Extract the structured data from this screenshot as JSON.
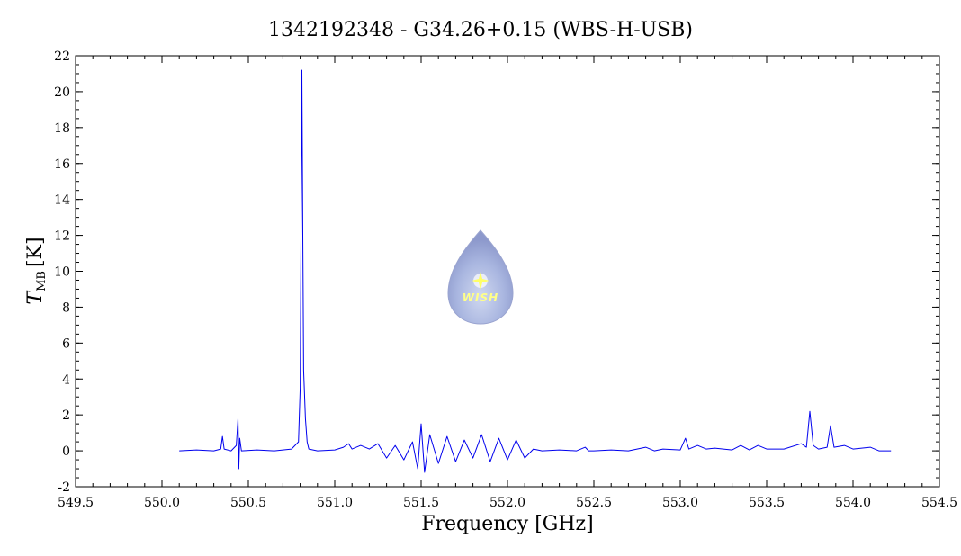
{
  "chart_data": {
    "type": "line",
    "title": "1342192348 - G34.26+0.15 (WBS-H-USB)",
    "xlabel": "Frequency [GHz]",
    "ylabel": {
      "symbol": "T",
      "subscript": "MB",
      "unit": "[K]"
    },
    "xlim": [
      549.5,
      554.5
    ],
    "ylim": [
      -2,
      22
    ],
    "xticks": [
      "549.5",
      "550.0",
      "550.5",
      "551.0",
      "551.5",
      "552.0",
      "552.5",
      "553.0",
      "553.5",
      "554.0",
      "554.5"
    ],
    "yticks": [
      "-2",
      "0",
      "2",
      "4",
      "6",
      "8",
      "10",
      "12",
      "14",
      "16",
      "18",
      "20",
      "22"
    ],
    "grid": false,
    "series": [
      {
        "color": "#0000ee",
        "x": [
          550.1,
          550.2,
          550.3,
          550.34,
          550.35,
          550.36,
          550.4,
          550.43,
          550.44,
          550.445,
          550.45,
          550.46,
          550.55,
          550.65,
          550.75,
          550.79,
          550.8,
          550.81,
          550.815,
          550.82,
          550.83,
          550.84,
          550.85,
          550.9,
          551.0,
          551.05,
          551.08,
          551.1,
          551.15,
          551.2,
          551.25,
          551.3,
          551.35,
          551.4,
          551.45,
          551.48,
          551.5,
          551.52,
          551.55,
          551.6,
          551.65,
          551.7,
          551.75,
          551.8,
          551.85,
          551.9,
          551.95,
          552.0,
          552.05,
          552.1,
          552.15,
          552.2,
          552.3,
          552.4,
          552.45,
          552.47,
          552.5,
          552.6,
          552.7,
          552.8,
          552.85,
          552.9,
          553.0,
          553.03,
          553.05,
          553.1,
          553.15,
          553.2,
          553.3,
          553.35,
          553.4,
          553.45,
          553.5,
          553.6,
          553.7,
          553.73,
          553.75,
          553.77,
          553.8,
          553.85,
          553.87,
          553.89,
          553.95,
          554.0,
          554.1,
          554.15,
          554.22
        ],
        "y": [
          0.0,
          0.05,
          0.0,
          0.1,
          0.8,
          0.1,
          0.0,
          0.3,
          1.8,
          -1.0,
          0.7,
          0.0,
          0.05,
          0.0,
          0.1,
          0.5,
          3.5,
          21.2,
          12.0,
          4.5,
          1.8,
          0.5,
          0.1,
          0.0,
          0.05,
          0.2,
          0.4,
          0.1,
          0.3,
          0.1,
          0.4,
          -0.4,
          0.3,
          -0.5,
          0.5,
          -1.0,
          1.5,
          -1.2,
          0.9,
          -0.7,
          0.8,
          -0.6,
          0.6,
          -0.4,
          0.9,
          -0.6,
          0.7,
          -0.5,
          0.6,
          -0.4,
          0.1,
          0.0,
          0.05,
          0.0,
          0.2,
          0.0,
          0.0,
          0.05,
          0.0,
          0.2,
          0.0,
          0.1,
          0.05,
          0.7,
          0.1,
          0.3,
          0.1,
          0.15,
          0.05,
          0.3,
          0.05,
          0.3,
          0.1,
          0.1,
          0.4,
          0.2,
          2.2,
          0.3,
          0.1,
          0.2,
          1.4,
          0.2,
          0.3,
          0.1,
          0.2,
          0.0,
          0.0
        ]
      }
    ]
  },
  "logo": {
    "text": "WISH"
  }
}
